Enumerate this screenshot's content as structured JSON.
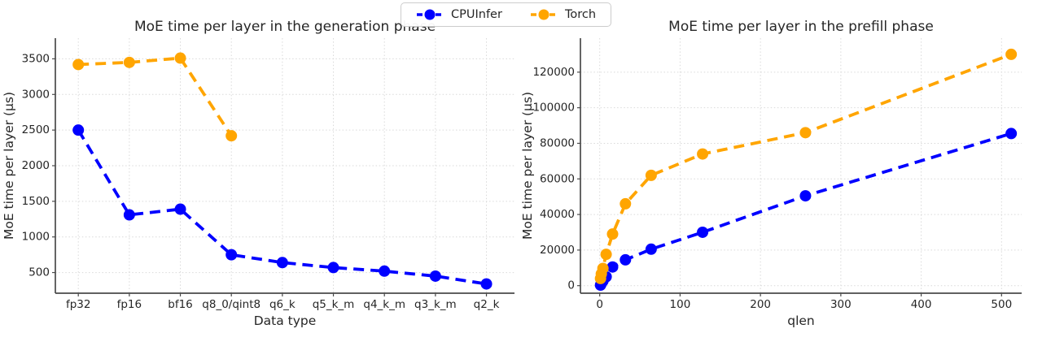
{
  "legend": {
    "position": "upper-center-outside",
    "items": [
      {
        "label": "CPUInfer",
        "color": "#0000ff"
      },
      {
        "label": "Torch",
        "color": "#ffa500"
      }
    ]
  },
  "chart_data": [
    {
      "id": "generation",
      "type": "line",
      "title": "MoE time per layer in the generation phase",
      "xlabel": "Data type",
      "ylabel": "MoE time per layer (µs)",
      "x_type": "categorical",
      "categories": [
        "fp32",
        "fp16",
        "bf16",
        "q8_0/qint8",
        "q6_k",
        "q5_k_m",
        "q4_k_m",
        "q3_k_m",
        "q2_k"
      ],
      "xlim": [
        -0.45,
        8.55
      ],
      "yticks": [
        500,
        1000,
        1500,
        2000,
        2500,
        3000,
        3500
      ],
      "ylim": [
        210,
        3790
      ],
      "grid": true,
      "line_style": "dashed",
      "marker": "circle",
      "series": [
        {
          "name": "CPUInfer",
          "color": "#0000ff",
          "values": [
            2500,
            1310,
            1390,
            750,
            640,
            570,
            520,
            450,
            340
          ]
        },
        {
          "name": "Torch",
          "color": "#ffa500",
          "values": [
            3420,
            3450,
            3510,
            2420,
            null,
            null,
            null,
            null,
            null
          ]
        }
      ]
    },
    {
      "id": "prefill",
      "type": "line",
      "title": "MoE time per layer in the prefill phase",
      "xlabel": "qlen",
      "ylabel": "MoE time per layer (µs)",
      "x_type": "numeric",
      "x": [
        1,
        2,
        4,
        8,
        16,
        32,
        64,
        128,
        256,
        512
      ],
      "xticks": [
        0,
        100,
        200,
        300,
        400,
        500
      ],
      "xlim": [
        -24,
        525
      ],
      "yticks": [
        0,
        20000,
        40000,
        60000,
        80000,
        100000,
        120000
      ],
      "ylim": [
        -4250,
        139100
      ],
      "grid": true,
      "line_style": "dashed",
      "marker": "circle",
      "series": [
        {
          "name": "CPUInfer",
          "color": "#0000ff",
          "values": [
            300,
            1200,
            2600,
            5000,
            10500,
            14500,
            20500,
            30000,
            50500,
            85500
          ]
        },
        {
          "name": "Torch",
          "color": "#ffa500",
          "values": [
            4000,
            6600,
            9700,
            17600,
            29000,
            46000,
            62000,
            74000,
            86000,
            130000
          ]
        }
      ]
    }
  ]
}
